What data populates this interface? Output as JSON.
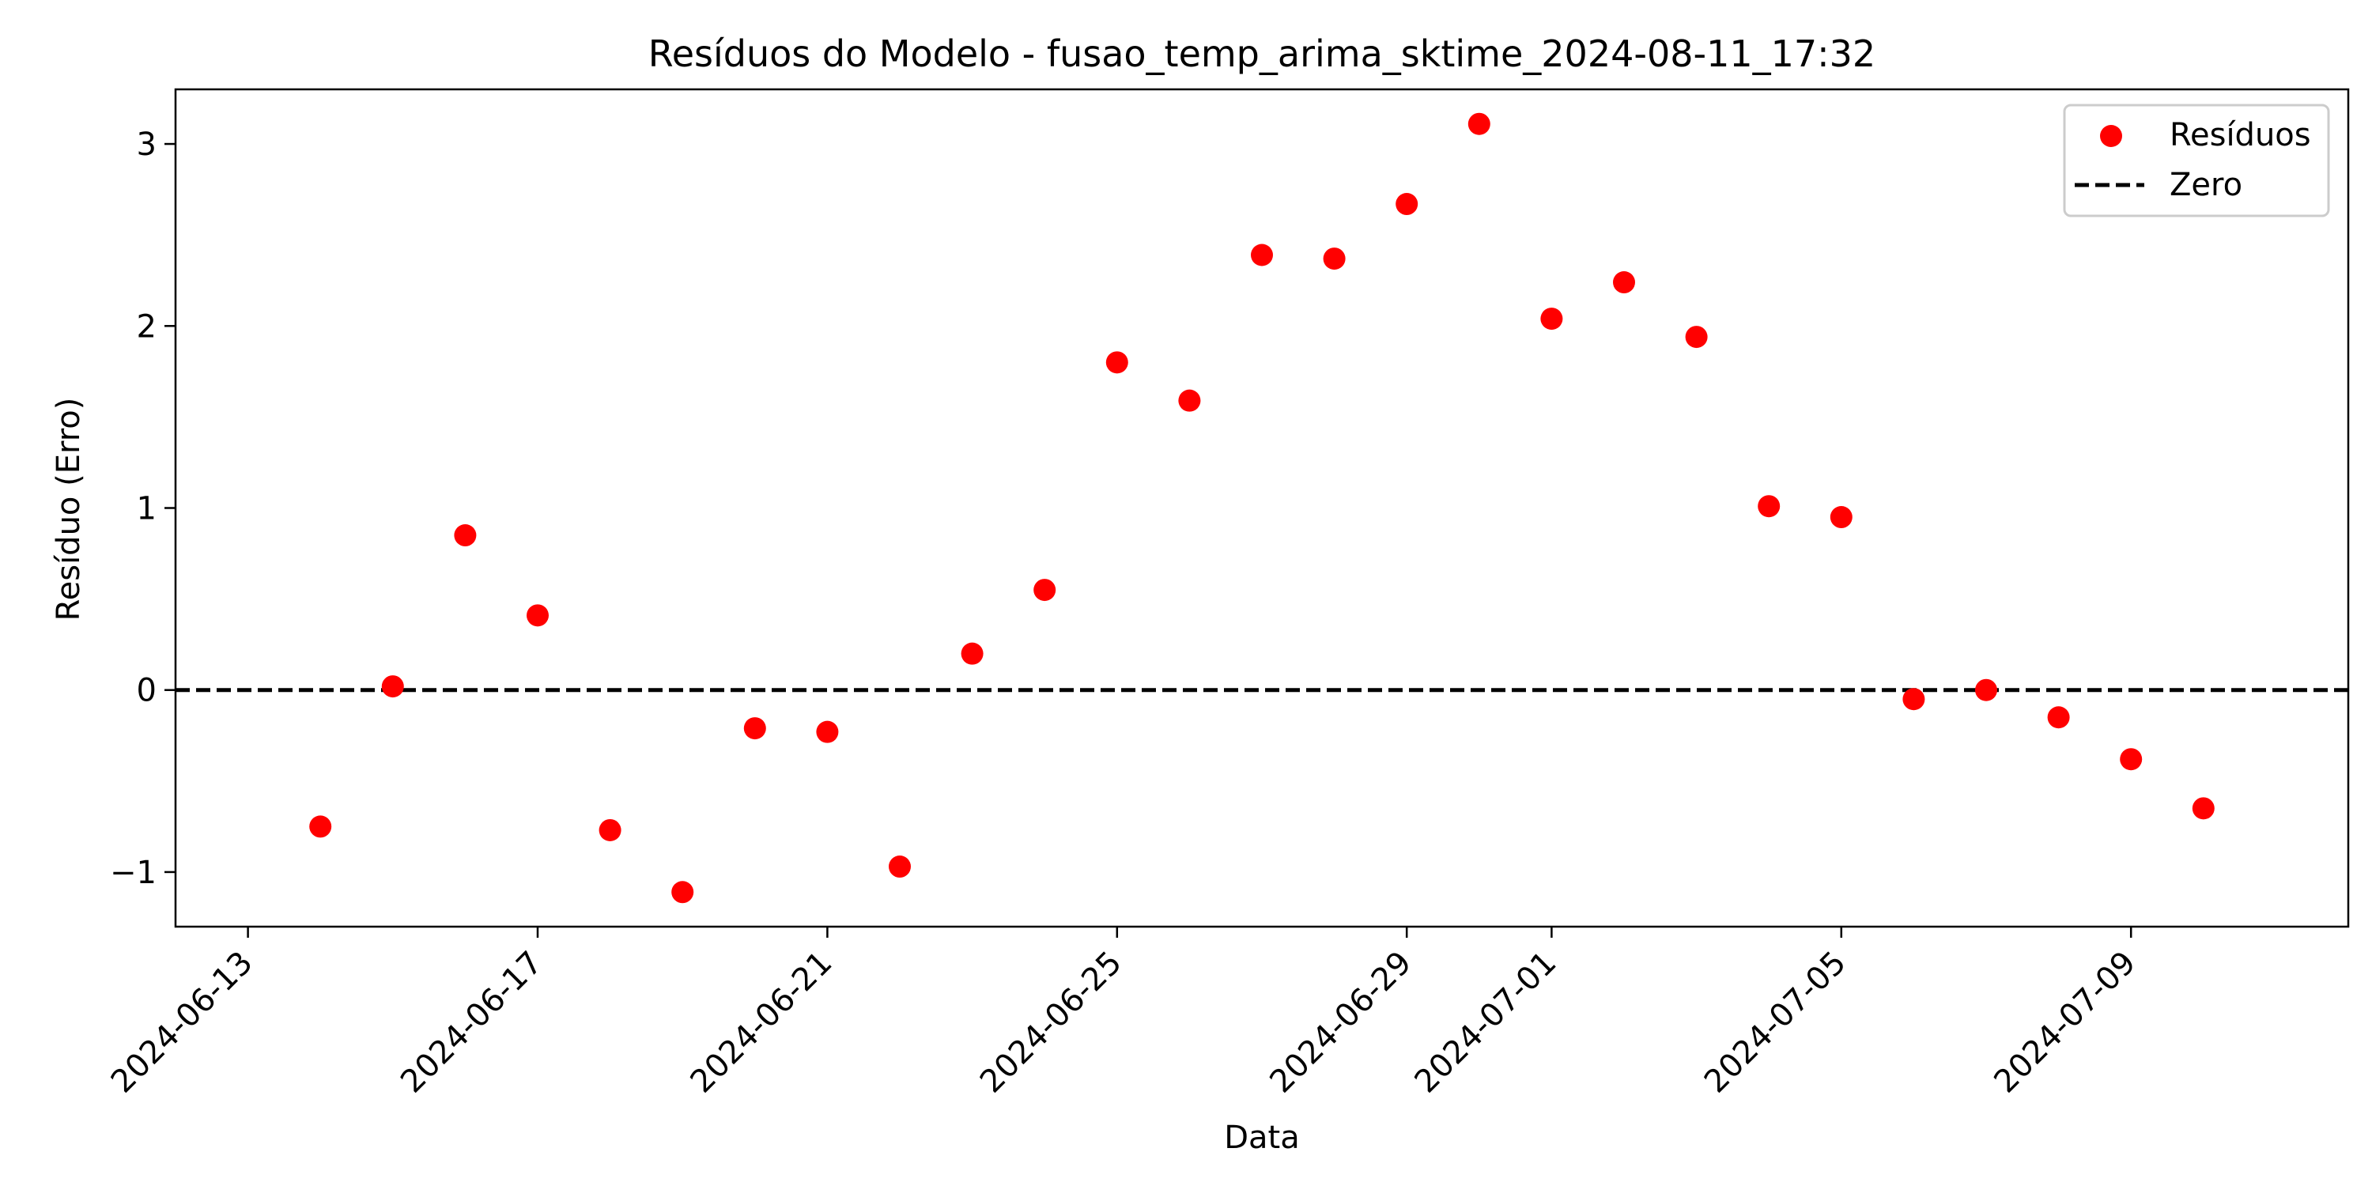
{
  "chart_data": {
    "type": "scatter",
    "title": "Resíduos do Modelo - fusao_temp_arima_sktime_2024-08-11_17:32",
    "xlabel": "Data",
    "ylabel": "Resíduo (Erro)",
    "xlim": [
      "2024-06-12",
      "2024-07-12"
    ],
    "ylim": [
      -1.3,
      3.3
    ],
    "x_ticks": [
      "2024-06-13",
      "2024-06-17",
      "2024-06-21",
      "2024-06-25",
      "2024-06-29",
      "2024-07-01",
      "2024-07-05",
      "2024-07-09"
    ],
    "y_ticks": [
      -1,
      0,
      1,
      2,
      3
    ],
    "y_tick_labels": [
      "−1",
      "0",
      "1",
      "2",
      "3"
    ],
    "grid": false,
    "legend": {
      "position": "top-right",
      "entries": [
        {
          "label": "Resíduos",
          "kind": "marker",
          "color": "#ff0000"
        },
        {
          "label": "Zero",
          "kind": "dashed-line",
          "color": "#000000"
        }
      ]
    },
    "series": [
      {
        "name": "Resíduos",
        "color": "#ff0000",
        "x": [
          "2024-06-14",
          "2024-06-15",
          "2024-06-16",
          "2024-06-17",
          "2024-06-18",
          "2024-06-19",
          "2024-06-20",
          "2024-06-21",
          "2024-06-22",
          "2024-06-23",
          "2024-06-24",
          "2024-06-25",
          "2024-06-26",
          "2024-06-27",
          "2024-06-28",
          "2024-06-29",
          "2024-06-30",
          "2024-07-01",
          "2024-07-02",
          "2024-07-03",
          "2024-07-04",
          "2024-07-05",
          "2024-07-06",
          "2024-07-07",
          "2024-07-08",
          "2024-07-09",
          "2024-07-10"
        ],
        "y": [
          -0.75,
          0.02,
          0.85,
          0.41,
          -0.77,
          -1.11,
          -0.21,
          -0.23,
          -0.97,
          0.2,
          0.55,
          1.8,
          1.59,
          2.39,
          2.37,
          2.67,
          3.11,
          2.04,
          2.24,
          1.94,
          1.01,
          0.95,
          -0.05,
          0.0,
          -0.15,
          -0.38,
          -0.65
        ]
      }
    ],
    "reference_line": {
      "name": "Zero",
      "y": 0,
      "style": "dashed",
      "color": "#000000"
    }
  }
}
